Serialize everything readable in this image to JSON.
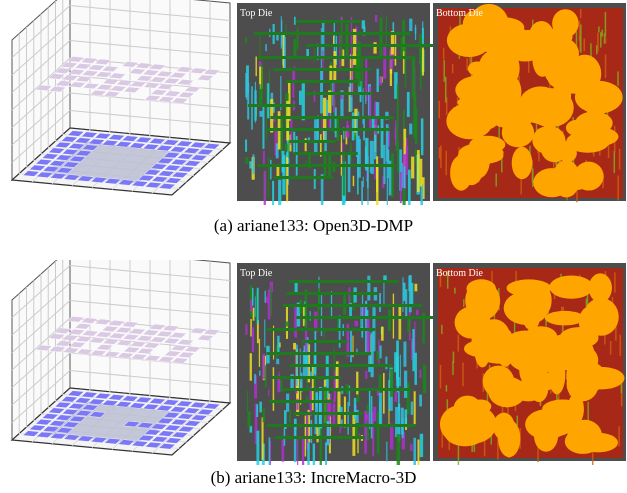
{
  "figure": {
    "rows": [
      {
        "top_label": "Top Die",
        "bottom_label": "Bottom Die",
        "caption": "(a) ariane133: Open3D-DMP"
      },
      {
        "top_label": "Top Die",
        "bottom_label": "Bottom Die",
        "caption": "(b) ariane133: IncreMacro-3D"
      }
    ]
  }
}
